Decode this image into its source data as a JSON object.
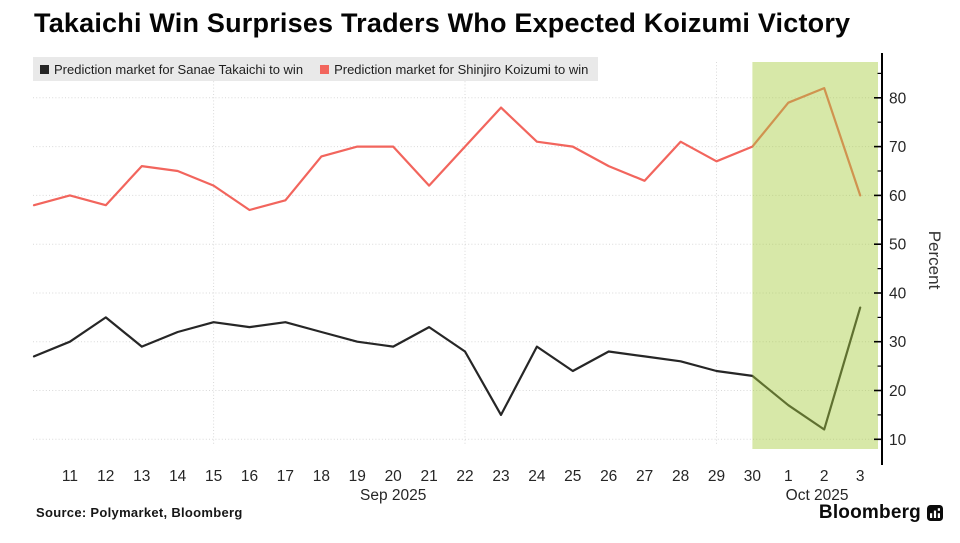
{
  "chart_data": {
    "type": "line",
    "title": "Takaichi Win Surprises Traders Who Expected Koizumi Victory",
    "x": [
      "Sep 10",
      "Sep 11",
      "Sep 12",
      "Sep 13",
      "Sep 14",
      "Sep 15",
      "Sep 16",
      "Sep 17",
      "Sep 18",
      "Sep 19",
      "Sep 20",
      "Sep 21",
      "Sep 22",
      "Sep 23",
      "Sep 24",
      "Sep 25",
      "Sep 26",
      "Sep 27",
      "Sep 28",
      "Sep 29",
      "Sep 30",
      "Oct 1",
      "Oct 2",
      "Oct 3"
    ],
    "x_tick_labels": [
      "",
      "11",
      "12",
      "13",
      "14",
      "15",
      "16",
      "17",
      "18",
      "19",
      "20",
      "21",
      "22",
      "23",
      "24",
      "25",
      "26",
      "27",
      "28",
      "29",
      "30",
      "1",
      "2",
      "3"
    ],
    "series": [
      {
        "name": "Prediction market for Sanae Takaichi to win",
        "color": "#262626",
        "values": [
          27,
          30,
          35,
          29,
          32,
          34,
          33,
          34,
          32,
          30,
          29,
          33,
          28,
          15,
          29,
          24,
          28,
          27,
          26,
          24,
          23,
          17,
          12,
          37
        ]
      },
      {
        "name": "Prediction market for Shinjiro Koizumi to win",
        "color": "#f2655d",
        "values": [
          58,
          60,
          58,
          66,
          65,
          62,
          57,
          59,
          68,
          70,
          70,
          62,
          70,
          78,
          71,
          70,
          66,
          63,
          71,
          67,
          70,
          79,
          82,
          60
        ]
      }
    ],
    "ylabel": "Percent",
    "yticks": [
      10,
      20,
      30,
      40,
      50,
      60,
      70,
      80
    ],
    "ylim": [
      5,
      87.5
    ],
    "unit": "Percent",
    "grid": {
      "horizontal": true,
      "vertical_week_indices": [
        5,
        12,
        19
      ]
    },
    "month_labels": [
      {
        "text": "Sep 2025",
        "index": 10
      },
      {
        "text": "Oct 2025",
        "index": 21.8
      }
    ],
    "highlight_region": {
      "from": "Sep 30",
      "to": "Oct 3",
      "from_index": 20,
      "color": "#a6cc3f",
      "opacity": 0.45
    },
    "legend_position": "top-left"
  },
  "source": "Source: Polymarket, Bloomberg",
  "branding": "Bloomberg"
}
